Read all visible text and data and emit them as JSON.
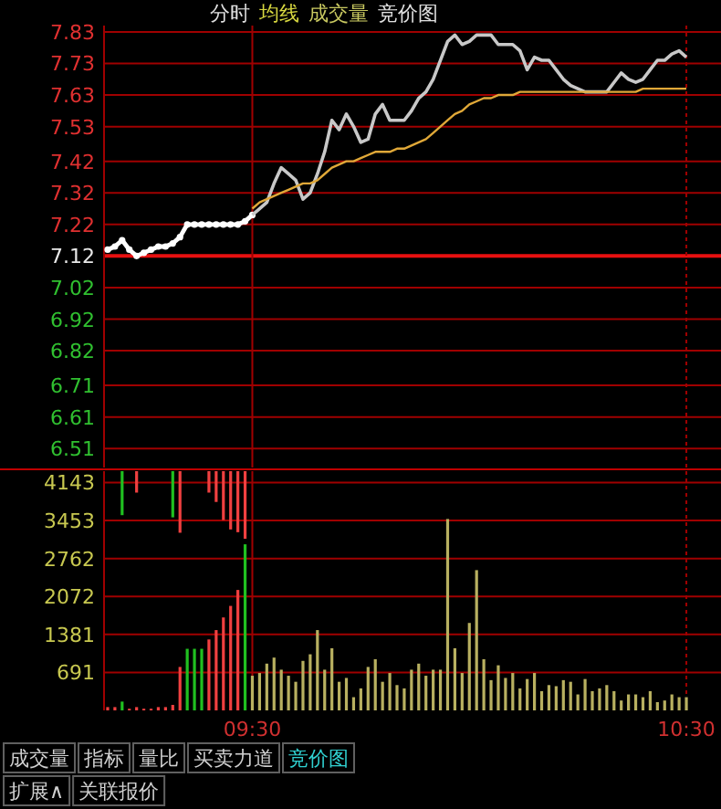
{
  "chart_data": [
    {
      "type": "line",
      "annotations": [
        "分时",
        "均线",
        "成交量",
        "竞价图"
      ],
      "categories": [
        null,
        null,
        null,
        null,
        null,
        null,
        null,
        null,
        null,
        null,
        null,
        null,
        null,
        null,
        null,
        null,
        null,
        null,
        null,
        null,
        null,
        null,
        null,
        null,
        null,
        null,
        null,
        null,
        null,
        null,
        null,
        null,
        null,
        null,
        null,
        null,
        null,
        null,
        null,
        null,
        null,
        null,
        null,
        null,
        null,
        null,
        null,
        null,
        null,
        null,
        null,
        null,
        null,
        null,
        null,
        null,
        null,
        null,
        null,
        null,
        null,
        null,
        null,
        null,
        null,
        null,
        null,
        null,
        null,
        null,
        null,
        null,
        null,
        null,
        null,
        null,
        null,
        null,
        null,
        null,
        null
      ],
      "tick_labels": "y",
      "grid": true,
      "ylim": [
        6.45,
        7.85
      ],
      "yticks": [
        7.83,
        7.73,
        7.63,
        7.53,
        7.42,
        7.32,
        7.22,
        7.12,
        7.02,
        6.92,
        6.82,
        6.71,
        6.61,
        6.51
      ],
      "ref_lines": [
        {
          "axis": "y",
          "value": 7.12,
          "color": "#e81010"
        }
      ],
      "series": [
        {
          "color": "#ffffff",
          "marker": "circle",
          "values": [
            7.14,
            7.15,
            7.17,
            7.14,
            7.12,
            7.13,
            7.14,
            7.15,
            7.15,
            7.16,
            7.18,
            7.22,
            7.22,
            7.22,
            7.22,
            7.22,
            7.22,
            7.22,
            7.22,
            7.23,
            7.25,
            null,
            null,
            null,
            null,
            null,
            null,
            null,
            null,
            null,
            null,
            null,
            null,
            null,
            null,
            null,
            null,
            null,
            null,
            null,
            null,
            null,
            null,
            null,
            null,
            null,
            null,
            null,
            null,
            null,
            null,
            null,
            null,
            null,
            null,
            null,
            null,
            null,
            null,
            null,
            null,
            null,
            null,
            null,
            null,
            null,
            null,
            null,
            null,
            null,
            null,
            null,
            null,
            null,
            null,
            null,
            null,
            null,
            null,
            null,
            null
          ]
        },
        {
          "color": "#c8c8c8",
          "marker": "none",
          "values": [
            null,
            null,
            null,
            null,
            null,
            null,
            null,
            null,
            null,
            null,
            null,
            null,
            null,
            null,
            null,
            null,
            null,
            null,
            null,
            null,
            7.25,
            7.27,
            7.29,
            7.35,
            7.4,
            7.38,
            7.36,
            7.3,
            7.32,
            7.38,
            7.45,
            7.55,
            7.52,
            7.57,
            7.53,
            7.48,
            7.49,
            7.57,
            7.6,
            7.55,
            7.55,
            7.55,
            7.58,
            7.62,
            7.64,
            7.68,
            7.74,
            7.8,
            7.82,
            7.79,
            7.8,
            7.82,
            7.82,
            7.82,
            7.79,
            7.79,
            7.79,
            7.77,
            7.71,
            7.75,
            7.74,
            7.74,
            7.71,
            7.68,
            7.66,
            7.65,
            7.64,
            7.64,
            7.64,
            7.64,
            7.67,
            7.7,
            7.68,
            7.67,
            7.68,
            7.71,
            7.74,
            7.74,
            7.76,
            7.77,
            7.75
          ]
        },
        {
          "color": "#e0a838",
          "marker": "none",
          "values": [
            null,
            null,
            null,
            null,
            null,
            null,
            null,
            null,
            null,
            null,
            null,
            null,
            null,
            null,
            null,
            null,
            null,
            null,
            null,
            null,
            7.27,
            7.29,
            7.3,
            7.31,
            7.32,
            7.33,
            7.34,
            7.35,
            7.35,
            7.36,
            7.38,
            7.4,
            7.41,
            7.42,
            7.42,
            7.43,
            7.44,
            7.45,
            7.45,
            7.45,
            7.46,
            7.46,
            7.47,
            7.48,
            7.49,
            7.51,
            7.53,
            7.55,
            7.57,
            7.58,
            7.6,
            7.61,
            7.62,
            7.62,
            7.63,
            7.63,
            7.63,
            7.64,
            7.64,
            7.64,
            7.64,
            7.64,
            7.64,
            7.64,
            7.64,
            7.64,
            7.64,
            7.64,
            7.64,
            7.64,
            7.64,
            7.64,
            7.64,
            7.64,
            7.65,
            7.65,
            7.65,
            7.65,
            7.65,
            7.65,
            7.65
          ]
        }
      ]
    },
    {
      "type": "bar",
      "annotations": [
        "成交量",
        "指标",
        "量比",
        "买卖力道",
        "竞价图",
        "扩展∧",
        "关联报价"
      ],
      "categories": [
        null,
        null,
        null,
        null,
        null,
        null,
        null,
        null,
        null,
        null,
        null,
        null,
        null,
        null,
        null,
        null,
        null,
        null,
        null,
        null,
        "09:30",
        null,
        null,
        null,
        null,
        null,
        null,
        null,
        null,
        null,
        null,
        null,
        null,
        null,
        null,
        null,
        null,
        null,
        null,
        null,
        null,
        null,
        null,
        null,
        null,
        null,
        null,
        null,
        null,
        null,
        null,
        null,
        null,
        null,
        null,
        null,
        null,
        null,
        null,
        null,
        null,
        null,
        null,
        null,
        null,
        null,
        null,
        null,
        null,
        null,
        null,
        null,
        null,
        null,
        null,
        null,
        null,
        null,
        null,
        null,
        "10:30"
      ],
      "grid": true,
      "ylim": [
        0,
        4350
      ],
      "yticks": [
        4143,
        3453,
        2762,
        2072,
        1381,
        691
      ],
      "series": [
        {
          "colors": [
            "#f04040",
            "#f04040",
            "#20c020",
            "#f04040",
            "#f04040",
            "#f04040",
            "#f04040",
            "#f04040",
            "#f04040",
            "#f04040",
            "#f04040",
            "#20c020",
            "#20c020",
            "#20c020",
            "#f04040",
            "#f04040",
            "#f04040",
            "#f04040",
            "#f04040",
            "#20c020",
            null,
            null,
            null,
            null,
            null,
            null,
            null,
            null,
            null,
            null,
            null,
            null,
            null,
            null,
            null,
            null,
            null,
            null,
            null,
            null,
            null,
            null,
            null,
            null,
            null,
            null,
            null,
            null,
            null,
            null,
            null,
            null,
            null,
            null,
            null,
            null,
            null,
            null,
            null,
            null,
            null,
            null,
            null,
            null,
            null,
            null,
            null,
            null,
            null,
            null,
            null,
            null,
            null,
            null,
            null,
            null,
            null,
            null,
            null,
            null,
            null
          ],
          "values": [
            60,
            60,
            160,
            30,
            60,
            30,
            30,
            60,
            60,
            100,
            790,
            1120,
            1120,
            1120,
            1290,
            1460,
            1690,
            1900,
            2190,
            3020,
            null,
            null,
            null,
            null,
            null,
            null,
            null,
            null,
            null,
            null,
            null,
            null,
            null,
            null,
            null,
            null,
            null,
            null,
            null,
            null,
            null,
            null,
            null,
            null,
            null,
            null,
            null,
            null,
            null,
            null,
            null,
            null,
            null,
            null,
            null,
            null,
            null,
            null,
            null,
            null,
            null,
            null,
            null,
            null,
            null,
            null,
            null,
            null,
            null,
            null,
            null,
            null,
            null,
            null,
            null,
            null,
            null,
            null,
            null,
            null,
            null
          ]
        },
        {
          "colors": [
            null,
            null,
            "#20c020",
            null,
            "#f04040",
            null,
            null,
            null,
            null,
            "#20c020",
            "#f04040",
            null,
            null,
            null,
            "#f04040",
            "#f04040",
            "#f04040",
            "#f04040",
            "#f04040",
            "#f04040",
            null,
            null,
            null,
            null,
            null,
            null,
            null,
            null,
            null,
            null,
            null,
            null,
            null,
            null,
            null,
            null,
            null,
            null,
            null,
            null,
            null,
            null,
            null,
            null,
            null,
            null,
            null,
            null,
            null,
            null,
            null,
            null,
            null,
            null,
            null,
            null,
            null,
            null,
            null,
            null,
            null,
            null,
            null,
            null,
            null,
            null,
            null,
            null,
            null,
            null,
            null,
            null,
            null,
            null,
            null,
            null,
            null,
            null,
            null,
            null,
            null
          ],
          "base": [
            null,
            null,
            4350,
            null,
            4350,
            null,
            null,
            null,
            null,
            4350,
            4350,
            null,
            null,
            null,
            4350,
            4350,
            4350,
            4350,
            4350,
            4350,
            null,
            null,
            null,
            null,
            null,
            null,
            null,
            null,
            null,
            null,
            null,
            null,
            null,
            null,
            null,
            null,
            null,
            null,
            null,
            null,
            null,
            null,
            null,
            null,
            null,
            null,
            null,
            null,
            null,
            null,
            null,
            null,
            null,
            null,
            null,
            null,
            null,
            null,
            null,
            null,
            null,
            null,
            null,
            null,
            null,
            null,
            null,
            null,
            null,
            null,
            null,
            null,
            null,
            null,
            null,
            null,
            null,
            null,
            null,
            null,
            null
          ],
          "values": [
            null,
            null,
            -800,
            null,
            -390,
            null,
            null,
            null,
            null,
            -840,
            -1120,
            null,
            null,
            null,
            -390,
            -560,
            -890,
            -1060,
            -1110,
            -1230,
            null,
            null,
            null,
            null,
            null,
            null,
            null,
            null,
            null,
            null,
            null,
            null,
            null,
            null,
            null,
            null,
            null,
            null,
            null,
            null,
            null,
            null,
            null,
            null,
            null,
            null,
            null,
            null,
            null,
            null,
            null,
            null,
            null,
            null,
            null,
            null,
            null,
            null,
            null,
            null,
            null,
            null,
            null,
            null,
            null,
            null,
            null,
            null,
            null,
            null,
            null,
            null,
            null,
            null,
            null,
            null,
            null,
            null,
            null,
            null,
            null
          ]
        },
        {
          "color": "#b8b060",
          "values": [
            null,
            null,
            null,
            null,
            null,
            null,
            null,
            null,
            null,
            null,
            null,
            null,
            null,
            null,
            null,
            null,
            null,
            null,
            null,
            null,
            630,
            680,
            850,
            960,
            740,
            630,
            520,
            900,
            1020,
            1460,
            740,
            1130,
            520,
            590,
            240,
            400,
            790,
            930,
            520,
            680,
            460,
            400,
            740,
            850,
            630,
            740,
            740,
            3480,
            1130,
            680,
            1590,
            2550,
            930,
            550,
            820,
            590,
            680,
            400,
            570,
            680,
            350,
            460,
            440,
            550,
            520,
            290,
            570,
            350,
            400,
            460,
            350,
            180,
            290,
            290,
            240,
            350,
            150,
            180,
            290,
            240,
            240
          ]
        }
      ]
    }
  ]
}
